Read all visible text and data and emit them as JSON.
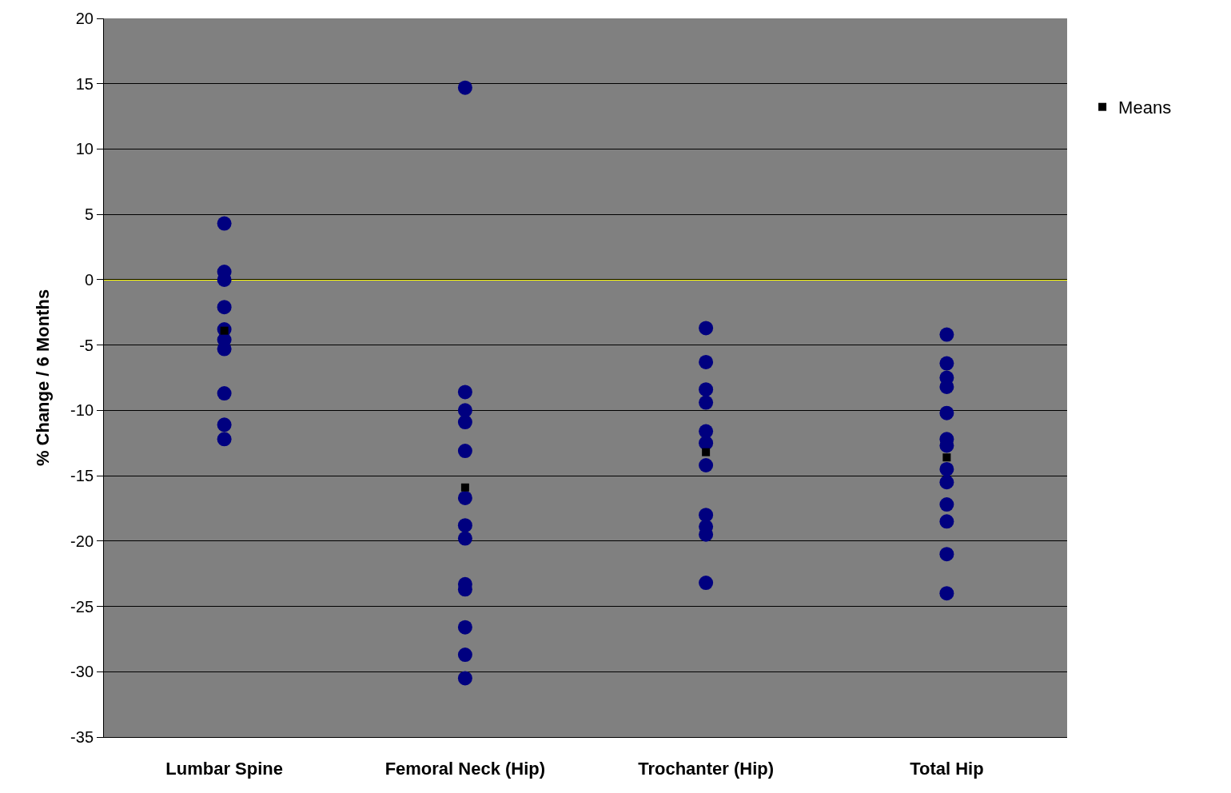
{
  "chart_data": {
    "type": "scatter",
    "ylabel": "% Change / 6 Months",
    "categories": [
      "Lumbar Spine",
      "Femoral Neck (Hip)",
      "Trochanter (Hip)",
      "Total Hip"
    ],
    "ylim": [
      -35,
      20
    ],
    "yticks": [
      -35,
      -30,
      -25,
      -20,
      -15,
      -10,
      -5,
      0,
      5,
      10,
      15,
      20
    ],
    "grid": "y",
    "legend": "right",
    "marker": "circle",
    "ref_lines": [
      {
        "axis": "y",
        "value": 0,
        "color": "#ffff00"
      }
    ],
    "series": [
      {
        "color": "#000080",
        "x": [
          "Lumbar Spine",
          "Lumbar Spine",
          "Lumbar Spine",
          "Lumbar Spine",
          "Lumbar Spine",
          "Lumbar Spine",
          "Lumbar Spine",
          "Lumbar Spine",
          "Lumbar Spine",
          "Lumbar Spine",
          "Femoral Neck (Hip)",
          "Femoral Neck (Hip)",
          "Femoral Neck (Hip)",
          "Femoral Neck (Hip)",
          "Femoral Neck (Hip)",
          "Femoral Neck (Hip)",
          "Femoral Neck (Hip)",
          "Femoral Neck (Hip)",
          "Femoral Neck (Hip)",
          "Femoral Neck (Hip)",
          "Femoral Neck (Hip)",
          "Femoral Neck (Hip)",
          "Femoral Neck (Hip)",
          "Trochanter (Hip)",
          "Trochanter (Hip)",
          "Trochanter (Hip)",
          "Trochanter (Hip)",
          "Trochanter (Hip)",
          "Trochanter (Hip)",
          "Trochanter (Hip)",
          "Trochanter (Hip)",
          "Trochanter (Hip)",
          "Trochanter (Hip)",
          "Trochanter (Hip)",
          "Total Hip",
          "Total Hip",
          "Total Hip",
          "Total Hip",
          "Total Hip",
          "Total Hip",
          "Total Hip",
          "Total Hip",
          "Total Hip",
          "Total Hip",
          "Total Hip",
          "Total Hip",
          "Total Hip"
        ],
        "values": [
          4.3,
          0.6,
          0.0,
          -2.1,
          -3.8,
          -4.6,
          -5.3,
          -8.7,
          -11.1,
          -12.2,
          14.7,
          -8.6,
          -10,
          -10.9,
          -13.1,
          -16.7,
          -18.8,
          -19.8,
          -23.3,
          -23.7,
          -26.6,
          -28.7,
          -30.5,
          -3.7,
          -6.3,
          -8.4,
          -9.4,
          -11.6,
          -12.5,
          -14.2,
          -18.0,
          -18.9,
          -19.5,
          -23.2,
          -4.2,
          -6.4,
          -7.5,
          -8.2,
          -10.2,
          -12.2,
          -12.7,
          -14.5,
          -15.5,
          -17.2,
          -18.5,
          -21.0,
          -24.0
        ]
      },
      {
        "name": "Means",
        "color": "#000000",
        "marker": "square",
        "x": [
          "Lumbar Spine",
          "Femoral Neck (Hip)",
          "Trochanter (Hip)",
          "Total Hip"
        ],
        "values": [
          -3.9,
          -15.9,
          -13.2,
          -13.6
        ]
      }
    ]
  }
}
